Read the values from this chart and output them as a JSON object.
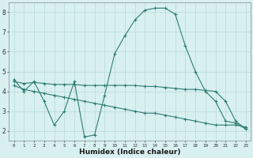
{
  "x": [
    0,
    1,
    2,
    3,
    4,
    5,
    6,
    7,
    8,
    9,
    10,
    11,
    12,
    13,
    14,
    15,
    16,
    17,
    18,
    19,
    20,
    21,
    22,
    23
  ],
  "line1": [
    4.6,
    4.0,
    4.5,
    3.5,
    2.3,
    3.0,
    4.5,
    1.7,
    1.8,
    3.8,
    5.9,
    6.8,
    7.6,
    8.1,
    8.2,
    8.2,
    7.9,
    6.3,
    5.0,
    4.0,
    3.5,
    2.5,
    2.4,
    2.1
  ],
  "line2": [
    4.5,
    4.4,
    4.45,
    4.4,
    4.35,
    4.35,
    4.35,
    4.3,
    4.3,
    4.3,
    4.3,
    4.3,
    4.3,
    4.25,
    4.25,
    4.2,
    4.15,
    4.1,
    4.1,
    4.05,
    4.0,
    3.5,
    2.5,
    2.1
  ],
  "line3": [
    4.3,
    4.1,
    4.0,
    3.9,
    3.8,
    3.7,
    3.6,
    3.5,
    3.4,
    3.3,
    3.2,
    3.1,
    3.0,
    2.9,
    2.9,
    2.8,
    2.7,
    2.6,
    2.5,
    2.4,
    2.3,
    2.3,
    2.3,
    2.2
  ],
  "line_color": "#2e7d72",
  "bg_color": "#d8f0f0",
  "grid_color": "#b8d8d8",
  "xlabel": "Humidex (Indice chaleur)",
  "ylim": [
    1.5,
    8.5
  ],
  "xlim": [
    -0.5,
    23.5
  ],
  "yticks": [
    2,
    3,
    4,
    5,
    6,
    7,
    8
  ],
  "xticks": [
    0,
    1,
    2,
    3,
    4,
    5,
    6,
    7,
    8,
    9,
    10,
    11,
    12,
    13,
    14,
    15,
    16,
    17,
    18,
    19,
    20,
    21,
    22,
    23
  ]
}
